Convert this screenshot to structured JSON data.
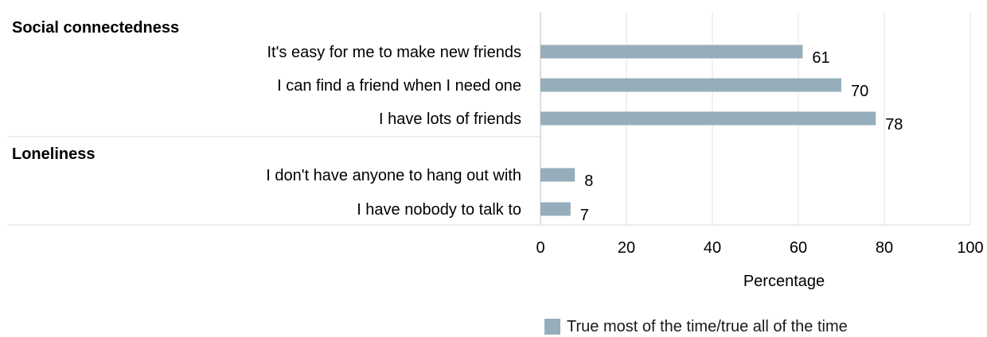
{
  "chart_data": {
    "type": "bar",
    "orientation": "horizontal",
    "groups": [
      {
        "title": "Social connectedness",
        "categories": [
          "It's easy for me to make new friends",
          "I can find a friend when I need one",
          "I have lots of friends"
        ],
        "values": [
          61,
          70,
          78
        ]
      },
      {
        "title": "Loneliness",
        "categories": [
          "I don't have anyone to hang out with",
          "I have nobody to talk to"
        ],
        "values": [
          8,
          7
        ]
      }
    ],
    "series": [
      {
        "name": "True most of the time/true all of the time",
        "color": "#96aebb"
      }
    ],
    "xlabel": "Percentage",
    "xlim": [
      0,
      100
    ],
    "xticks": [
      0,
      20,
      40,
      60,
      80,
      100
    ],
    "grid": true,
    "legend_position": "bottom"
  }
}
